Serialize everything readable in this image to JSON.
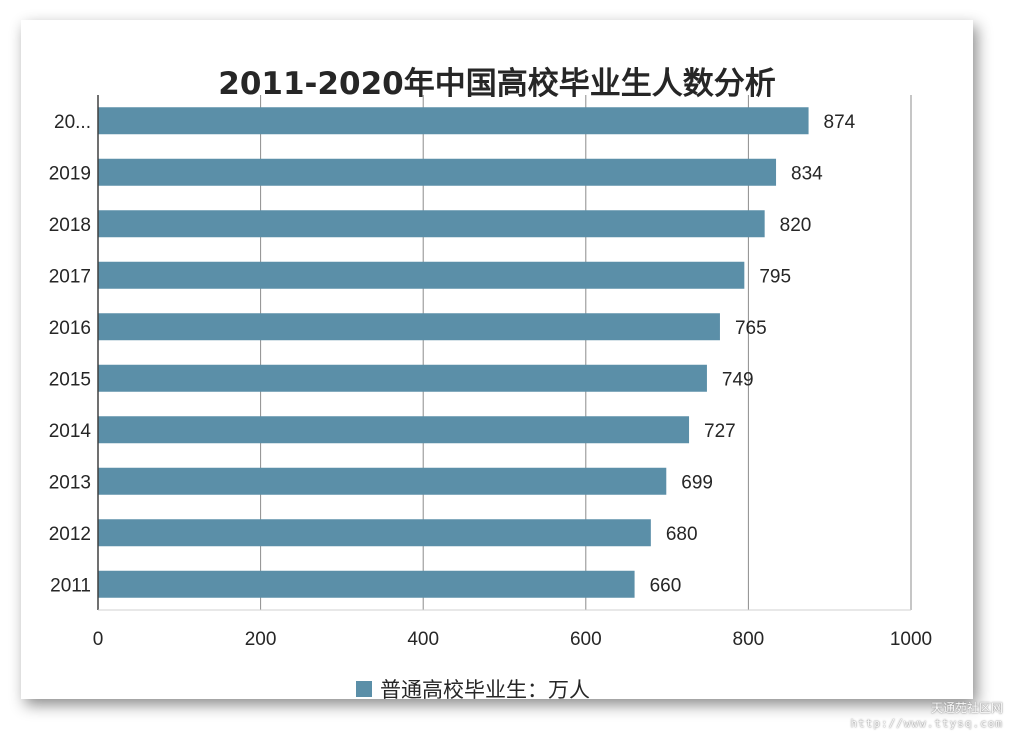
{
  "chart_data": {
    "type": "bar",
    "orientation": "horizontal",
    "title": "2011-2020年中国高校毕业生人数分析",
    "categories": [
      "2011",
      "2012",
      "2013",
      "2014",
      "2015",
      "2016",
      "2017",
      "2018",
      "2019",
      "20..."
    ],
    "series": [
      {
        "name": "普通高校毕业生：万人",
        "values": [
          660,
          680,
          699,
          727,
          749,
          765,
          795,
          820,
          834,
          874
        ],
        "color": "#5b8fa8"
      }
    ],
    "data_labels": [
      "660",
      "680",
      "699",
      "727",
      "749",
      "765",
      "795",
      "820",
      "834",
      "874"
    ],
    "xlim": [
      0,
      1000
    ],
    "x_ticks": [
      0,
      200,
      400,
      600,
      800,
      1000
    ],
    "x_tick_labels": [
      "0",
      "200",
      "400",
      "600",
      "800",
      "1000"
    ],
    "grid": "vertical",
    "legend_position": "bottom",
    "category_order": "bottom-to-top"
  },
  "watermark": {
    "line1": "天通苑社区网",
    "line2": "http://www.ttysq.com"
  }
}
